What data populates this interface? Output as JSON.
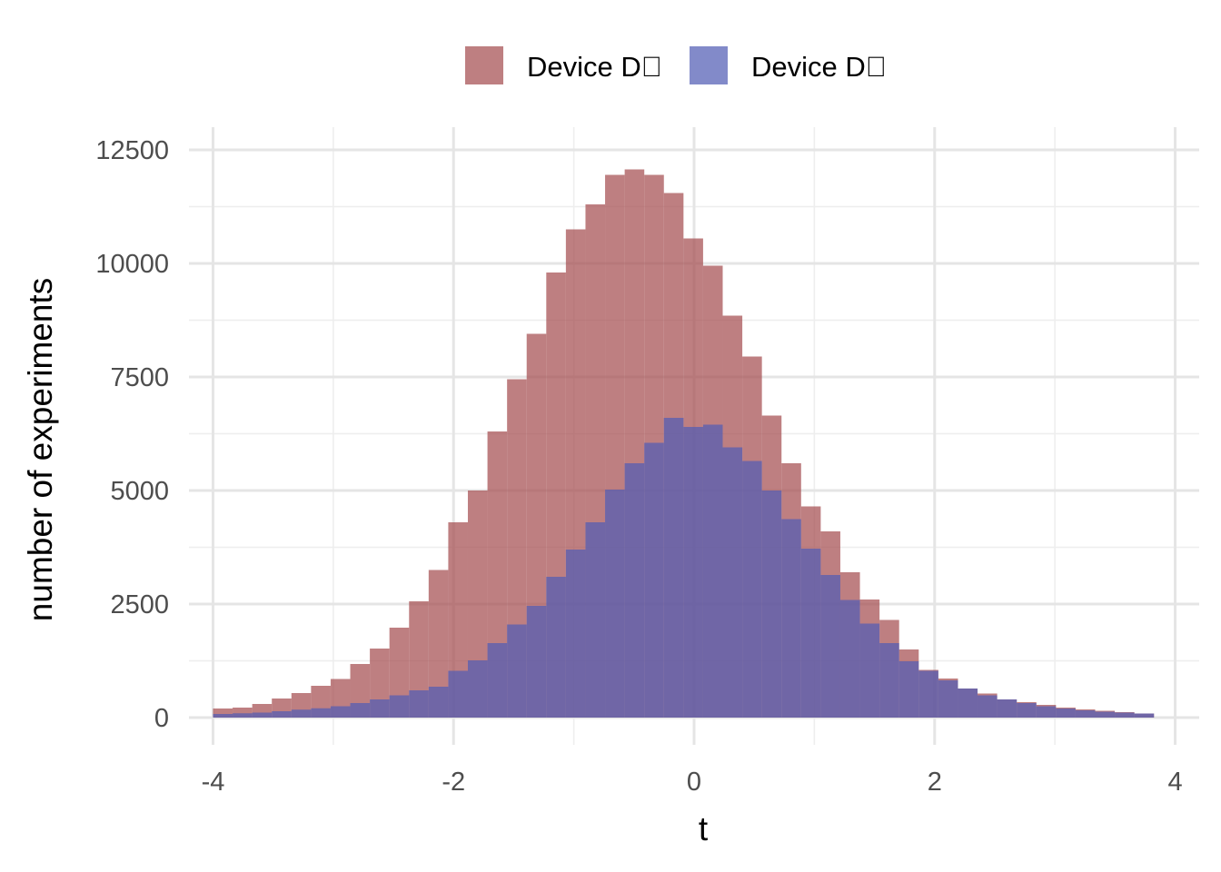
{
  "chart_data": {
    "type": "histogram",
    "title": "",
    "xlabel": "t",
    "ylabel": "number of experiments",
    "xlim": [
      -4.2,
      4.2
    ],
    "ylim": [
      -600,
      13000
    ],
    "x_ticks": [
      -4,
      -2,
      0,
      2,
      4
    ],
    "x_tick_labels": [
      "-4",
      "-2",
      "0",
      "2",
      "4"
    ],
    "y_ticks": [
      0,
      2500,
      5000,
      7500,
      10000,
      12500
    ],
    "y_tick_labels": [
      "0",
      "2500",
      "5000",
      "7500",
      "10000",
      "12500"
    ],
    "grid": true,
    "legend_position": "top",
    "bin_start": -4.0,
    "bin_width": 0.163,
    "series": [
      {
        "name": "Device D\u0000",
        "color": "#a54e50",
        "opacity": 0.72,
        "values": [
          200,
          220,
          300,
          420,
          540,
          700,
          850,
          1180,
          1520,
          1980,
          2560,
          3250,
          4300,
          5000,
          6300,
          7450,
          8450,
          9800,
          10750,
          11300,
          11950,
          12070,
          11950,
          11550,
          10550,
          9950,
          8850,
          7950,
          6650,
          5600,
          4650,
          4100,
          3200,
          2600,
          2150,
          1500,
          1050,
          860,
          640,
          530,
          400,
          340,
          280,
          220,
          180,
          150,
          120,
          90
        ]
      },
      {
        "name": "Device D\u0000",
        "color": "#525db4",
        "opacity": 0.72,
        "values": [
          80,
          95,
          110,
          140,
          175,
          205,
          250,
          320,
          400,
          490,
          600,
          680,
          1030,
          1260,
          1640,
          2050,
          2460,
          3100,
          3700,
          4300,
          5020,
          5600,
          6050,
          6600,
          6400,
          6450,
          5950,
          5650,
          5000,
          4370,
          3720,
          3140,
          2590,
          2070,
          1640,
          1240,
          1030,
          820,
          640,
          490,
          400,
          320,
          250,
          200,
          160,
          130,
          110,
          90
        ]
      }
    ]
  }
}
